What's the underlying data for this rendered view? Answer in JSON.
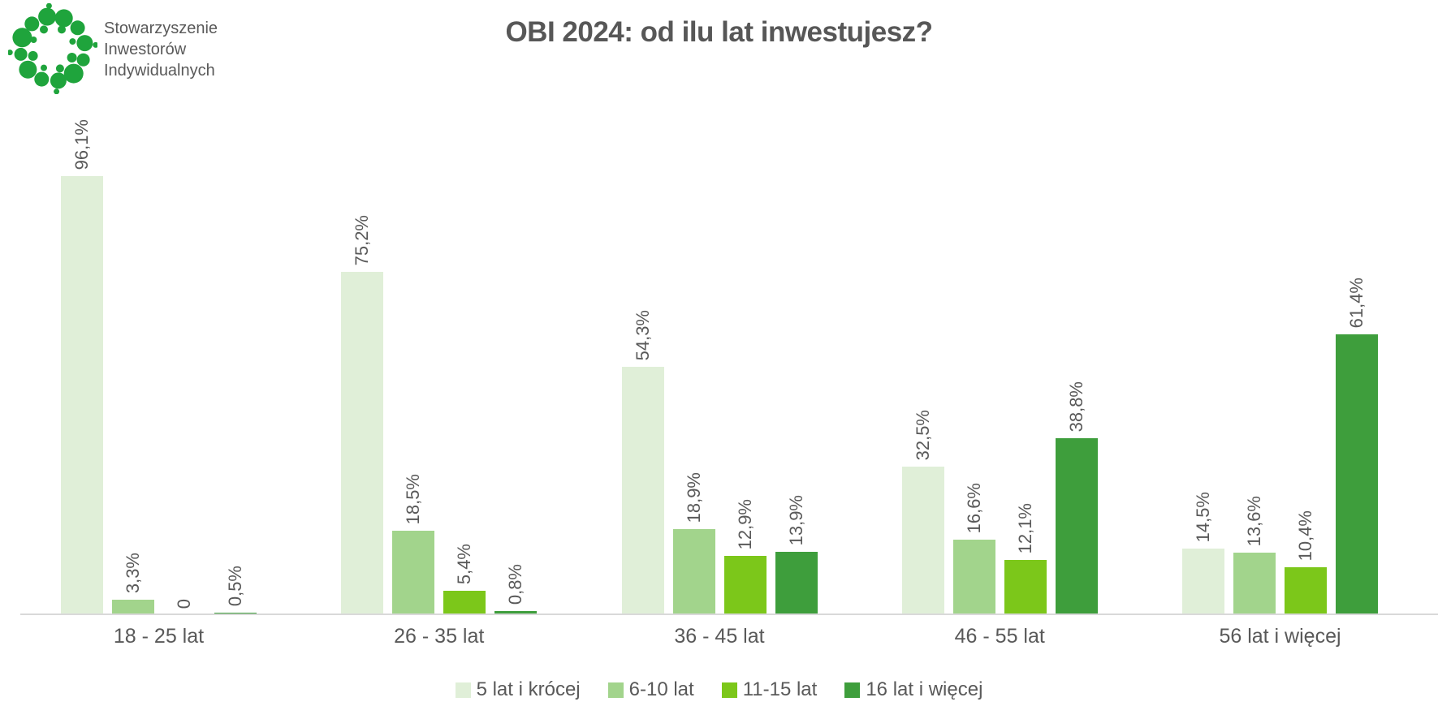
{
  "logo": {
    "org_lines": [
      "Stowarzyszenie",
      "Inwestorów",
      "Indywidualnych"
    ],
    "dot_color": "#1FA43C"
  },
  "title": "OBI 2024: od ilu lat inwestujesz?",
  "chart_data": {
    "type": "bar",
    "title": "OBI 2024: od ilu lat inwestujesz?",
    "categories": [
      "18 - 25 lat",
      "26 - 35 lat",
      "36 - 45 lat",
      "46 - 55 lat",
      "56 lat i więcej"
    ],
    "series": [
      {
        "name": "5 lat i krócej",
        "color": "#E0EFD8",
        "values": [
          96.1,
          75.2,
          54.3,
          32.5,
          14.5
        ],
        "labels": [
          "96,1%",
          "75,2%",
          "54,3%",
          "32,5%",
          "14,5%"
        ]
      },
      {
        "name": "6-10 lat",
        "color": "#A2D48C",
        "values": [
          3.3,
          18.5,
          18.9,
          16.6,
          13.6
        ],
        "labels": [
          "3,3%",
          "18,5%",
          "18,9%",
          "16,6%",
          "13,6%"
        ]
      },
      {
        "name": "11-15 lat",
        "color": "#7CC71A",
        "values": [
          0,
          5.4,
          12.9,
          12.1,
          10.4
        ],
        "labels": [
          "0",
          "5,4%",
          "12,9%",
          "12,1%",
          "10,4%"
        ]
      },
      {
        "name": "16 lat i więcej",
        "color": "#3E9E3C",
        "values": [
          0.5,
          0.8,
          13.9,
          38.8,
          61.4
        ],
        "labels": [
          "0,5%",
          "0,8%",
          "13,9%",
          "38,8%",
          "61,4%"
        ]
      }
    ],
    "ylim": [
      0,
      100
    ],
    "grid": false,
    "legend_position": "bottom",
    "value_labels_rotated": true,
    "axis_line_color": "#D9D9D9",
    "text_color": "#595959"
  }
}
